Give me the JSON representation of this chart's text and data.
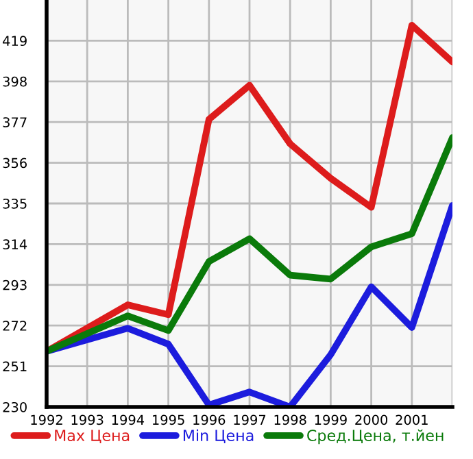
{
  "chart_data": {
    "type": "line",
    "x": [
      1992,
      1993,
      1994,
      1995,
      1996,
      1997,
      1998,
      1999,
      2000,
      2001,
      2002
    ],
    "series": [
      {
        "name": "Max Цена",
        "color": "#dd1c1c",
        "values": [
          258.7,
          null,
          282.7,
          277.6,
          378.4,
          396,
          365.8,
          348,
          333,
          427,
          408
        ]
      },
      {
        "name": "Min Цена",
        "color": "#1c1cdd",
        "values": [
          258.7,
          null,
          270.6,
          262.4,
          231,
          237.7,
          230,
          257,
          292,
          271,
          334
        ]
      },
      {
        "name": "Сред.Цена, т.йен",
        "color": "#0a7a0a",
        "values": [
          258.7,
          null,
          277,
          269.4,
          305,
          316.8,
          298,
          296,
          312.6,
          319.4,
          369
        ]
      }
    ],
    "xlim": [
      1992,
      2002
    ],
    "ylim": [
      230,
      440
    ],
    "xticks": [
      1992,
      1993,
      1994,
      1995,
      1996,
      1997,
      1998,
      1999,
      2000,
      2001,
      {
        "value": 2002,
        "label": null
      }
    ],
    "yticks": [
      230,
      251,
      272,
      293,
      314,
      335,
      356,
      377,
      398,
      419
    ],
    "grid": true,
    "legend": "bottom",
    "marker": "none",
    "line_style": "solid"
  }
}
